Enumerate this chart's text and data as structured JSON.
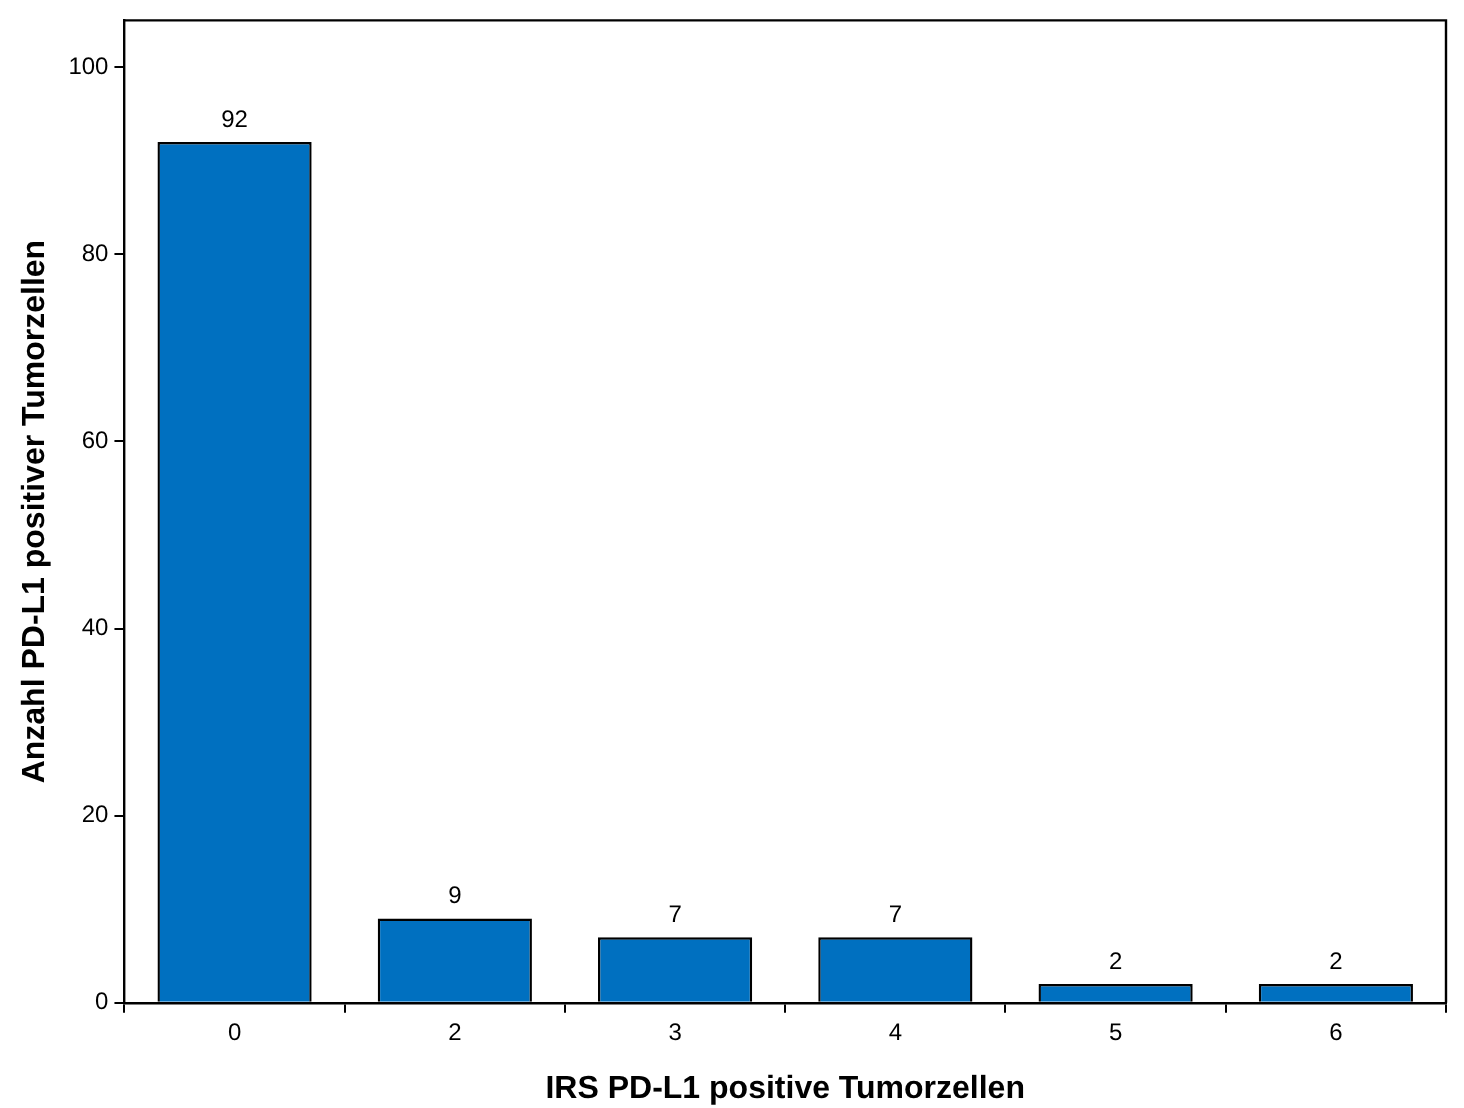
{
  "chart_data": {
    "type": "bar",
    "xlabel": "IRS PD-L1 positive Tumorzellen",
    "ylabel": "Anzahl PD-L1 positiver Tumorzellen",
    "categories": [
      "0",
      "2",
      "3",
      "4",
      "5",
      "6"
    ],
    "values": [
      92,
      9,
      7,
      7,
      2,
      2
    ],
    "color": "#0070c0",
    "ylim": [
      0,
      105
    ],
    "yticks": [
      0,
      20,
      40,
      60,
      80,
      100
    ],
    "grid": false,
    "legend": false,
    "data_labels": true
  }
}
